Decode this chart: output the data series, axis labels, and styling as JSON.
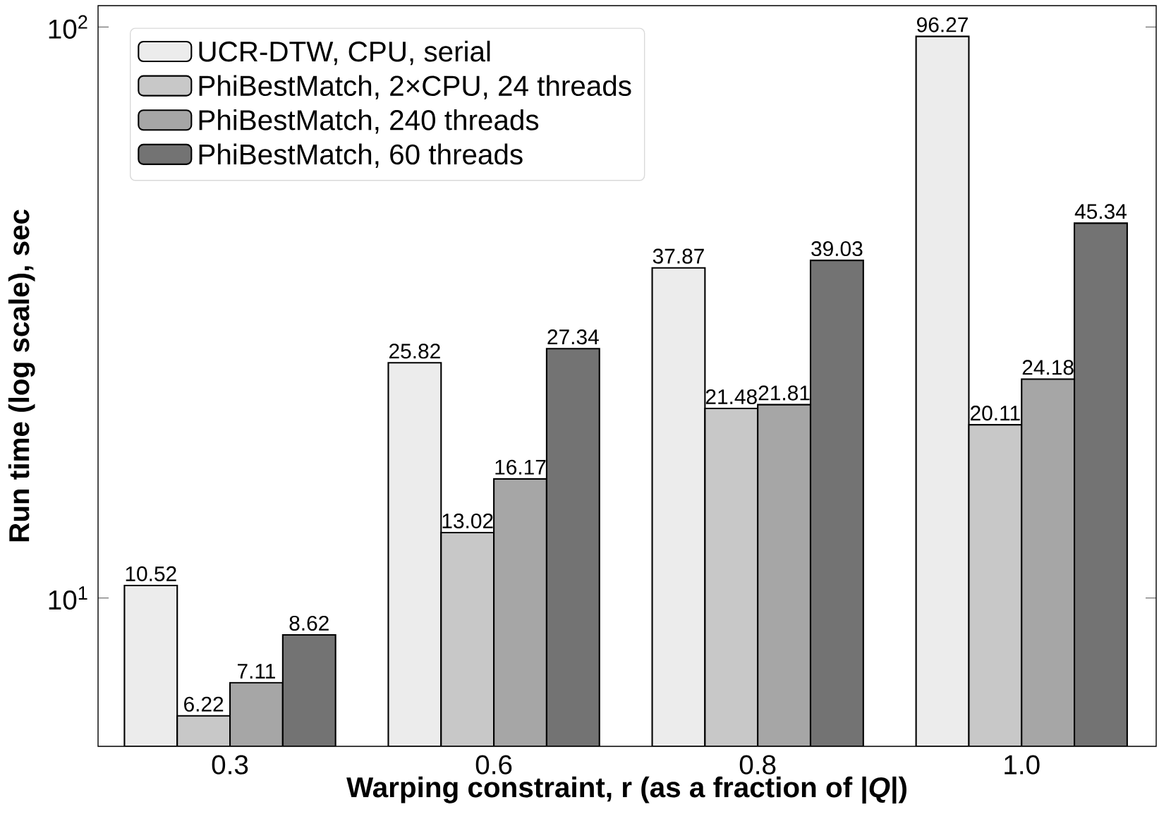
{
  "chart_data": {
    "type": "bar",
    "xlabel": "Warping constraint, r (as a fraction of |*Q*|)",
    "ylabel": "Run time (log scale), sec",
    "categories": [
      "0.3",
      "0.6",
      "0.8",
      "1.0"
    ],
    "series": [
      {
        "name": "UCR-DTW, CPU, serial",
        "color": "#ececec",
        "values": [
          10.52,
          25.82,
          37.87,
          96.27
        ]
      },
      {
        "name": "PhiBestMatch, 2×CPU, 24 threads",
        "color": "#c8c8c8",
        "values": [
          6.22,
          13.02,
          21.48,
          20.11
        ]
      },
      {
        "name": "PhiBestMatch, 240 threads",
        "color": "#a6a6a6",
        "values": [
          7.11,
          16.17,
          21.81,
          24.18
        ]
      },
      {
        "name": "PhiBestMatch, 60 threads",
        "color": "#737373",
        "values": [
          8.62,
          27.34,
          39.03,
          45.34
        ]
      }
    ],
    "log": "y",
    "ylim": [
      5.5,
      109
    ],
    "yticks": [
      {
        "value": 10,
        "label": "10$^{1}$"
      },
      {
        "value": 100,
        "label": "10$^{2}$"
      }
    ],
    "data_labels": true,
    "legend": "top left",
    "grid": false
  }
}
